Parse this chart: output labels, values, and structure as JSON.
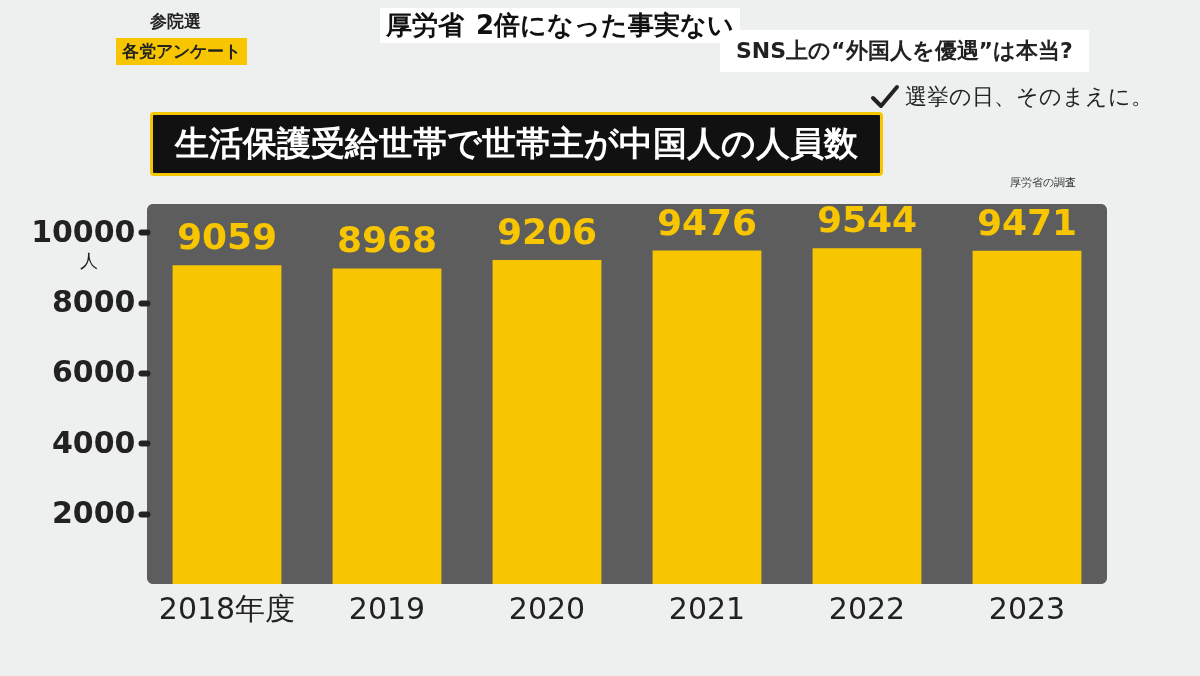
{
  "chart_data": {
    "type": "bar",
    "title": "生活保護受給世帯で世帯主が中国人の人員数",
    "ylabel": "人",
    "categories": [
      "2018年度",
      "2019",
      "2020",
      "2021",
      "2022",
      "2023"
    ],
    "values": [
      9059,
      8968,
      9206,
      9476,
      9544,
      9471
    ],
    "color": "#f7c600",
    "ylim": [
      0,
      10800
    ],
    "yticks": [
      2000,
      4000,
      6000,
      8000,
      10000
    ],
    "data_labels": true,
    "annotations": [
      "参院選",
      "各党アンケート",
      "SNS上の“外国人を優遇”は本当?",
      "選挙の日、そのまえに。",
      "厚労省の調査",
      "厚労省",
      "2倍になった事実ない"
    ]
  }
}
